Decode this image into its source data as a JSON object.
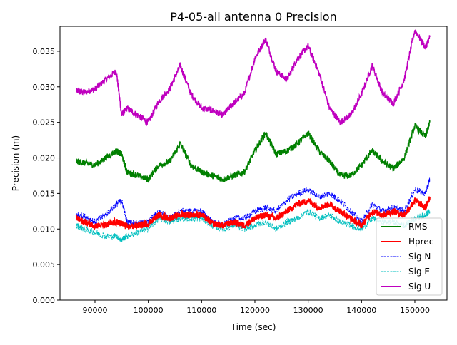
{
  "chart_data": {
    "type": "line",
    "title": "P4-05-all antenna 0 Precision",
    "xlabel": "Time (sec)",
    "ylabel": "Precision (m)",
    "xlim": [
      83440,
      156030
    ],
    "ylim": [
      0,
      0.0385
    ],
    "xticks": [
      90000,
      100000,
      110000,
      120000,
      130000,
      140000,
      150000
    ],
    "xtick_labels": [
      "90000",
      "100000",
      "110000",
      "120000",
      "130000",
      "140000",
      "150000"
    ],
    "yticks": [
      0,
      0.005,
      0.01,
      0.015,
      0.02,
      0.025,
      0.03,
      0.035
    ],
    "ytick_labels": [
      "0.000",
      "0.005",
      "0.010",
      "0.015",
      "0.020",
      "0.025",
      "0.030",
      "0.035"
    ],
    "grid": false,
    "legend_position": "bottom-right",
    "x": [
      86500,
      88000,
      90000,
      92000,
      94000,
      95000,
      96000,
      98000,
      100000,
      102000,
      104000,
      106000,
      108000,
      110000,
      112000,
      114000,
      116000,
      118000,
      120000,
      122000,
      124000,
      126000,
      128000,
      130000,
      132000,
      134000,
      136000,
      138000,
      140000,
      142000,
      144000,
      146000,
      148000,
      150000,
      152000,
      152800
    ],
    "series": [
      {
        "name": "RMS",
        "color": "#008000",
        "style": "solid",
        "values": [
          0.0195,
          0.0193,
          0.019,
          0.02,
          0.021,
          0.0205,
          0.018,
          0.0175,
          0.017,
          0.019,
          0.0195,
          0.022,
          0.019,
          0.018,
          0.0175,
          0.017,
          0.0175,
          0.018,
          0.021,
          0.0235,
          0.0205,
          0.021,
          0.022,
          0.0235,
          0.021,
          0.0195,
          0.0175,
          0.0175,
          0.019,
          0.021,
          0.0195,
          0.0185,
          0.02,
          0.0245,
          0.023,
          0.025
        ]
      },
      {
        "name": "Hprec",
        "color": "#ff0000",
        "style": "solid",
        "values": [
          0.0115,
          0.011,
          0.0105,
          0.0105,
          0.011,
          0.0108,
          0.0103,
          0.0105,
          0.0108,
          0.012,
          0.0115,
          0.012,
          0.012,
          0.012,
          0.0108,
          0.0105,
          0.011,
          0.0105,
          0.0115,
          0.012,
          0.0115,
          0.0125,
          0.0135,
          0.014,
          0.013,
          0.0135,
          0.0125,
          0.0115,
          0.0105,
          0.0125,
          0.012,
          0.0125,
          0.012,
          0.014,
          0.013,
          0.0145
        ]
      },
      {
        "name": "Sig N",
        "color": "#0000ff",
        "style": "dashed",
        "values": [
          0.012,
          0.0118,
          0.011,
          0.012,
          0.0135,
          0.014,
          0.011,
          0.0108,
          0.011,
          0.0125,
          0.0115,
          0.0125,
          0.0125,
          0.0125,
          0.011,
          0.0105,
          0.0115,
          0.0115,
          0.0125,
          0.013,
          0.0125,
          0.014,
          0.015,
          0.0155,
          0.0145,
          0.015,
          0.014,
          0.0125,
          0.011,
          0.0135,
          0.0125,
          0.013,
          0.0125,
          0.0155,
          0.015,
          0.017
        ]
      },
      {
        "name": "Sig E",
        "color": "#00bfbf",
        "style": "dashed",
        "values": [
          0.0105,
          0.01,
          0.0095,
          0.009,
          0.009,
          0.0085,
          0.009,
          0.0095,
          0.01,
          0.0115,
          0.011,
          0.0115,
          0.0115,
          0.0115,
          0.0105,
          0.01,
          0.0105,
          0.01,
          0.0105,
          0.011,
          0.01,
          0.011,
          0.0115,
          0.0125,
          0.0115,
          0.012,
          0.011,
          0.0105,
          0.01,
          0.0115,
          0.011,
          0.011,
          0.0105,
          0.0115,
          0.012,
          0.0125
        ]
      },
      {
        "name": "Sig U",
        "color": "#bf00bf",
        "style": "solid",
        "values": [
          0.0294,
          0.0292,
          0.0297,
          0.031,
          0.0322,
          0.026,
          0.027,
          0.026,
          0.025,
          0.028,
          0.0297,
          0.033,
          0.029,
          0.027,
          0.0267,
          0.026,
          0.0277,
          0.029,
          0.034,
          0.0367,
          0.0322,
          0.031,
          0.034,
          0.0357,
          0.032,
          0.027,
          0.025,
          0.026,
          0.029,
          0.033,
          0.029,
          0.0277,
          0.031,
          0.038,
          0.0355,
          0.037
        ]
      }
    ]
  }
}
